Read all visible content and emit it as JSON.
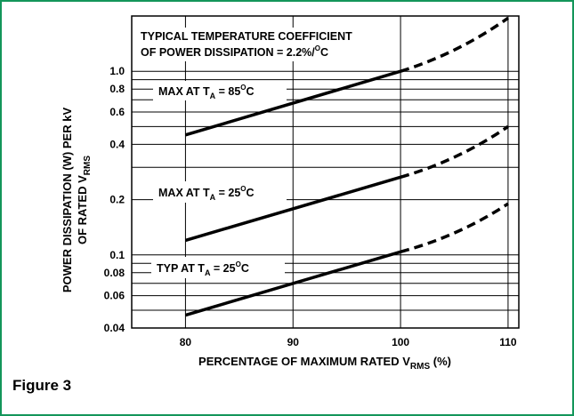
{
  "figure": {
    "label": "Figure 3"
  },
  "colors": {
    "frame": "#13965a",
    "ink": "#000000",
    "background": "#ffffff"
  },
  "chart_data": {
    "type": "line",
    "title": "",
    "annotation": {
      "line1": "TYPICAL TEMPERATURE COEFFICIENT",
      "line2_prefix": "OF POWER DISSIPATION = 2.2%/",
      "line2_sup": "O",
      "line2_suffix": "C"
    },
    "xlabel": {
      "prefix": "PERCENTAGE OF MAXIMUM RATED V",
      "sub": "RMS",
      "suffix": " (%)"
    },
    "ylabel": {
      "line1": "POWER DISSIPATION (W) PER kV",
      "line2_prefix": "OF RATED V",
      "line2_sub": "RMS"
    },
    "x_ticks": [
      "80",
      "90",
      "100",
      "110"
    ],
    "y_ticks": [
      "0.04",
      "0.06",
      "0.08",
      "0.1",
      "0.2",
      "0.4",
      "0.6",
      "0.8",
      "1.0"
    ],
    "xlim": [
      75,
      111
    ],
    "ylim": [
      0.04,
      2
    ],
    "y_scale": "log",
    "grid": true,
    "series": [
      {
        "name": {
          "prefix": "MAX AT T",
          "sub": "A",
          "mid": " = 85",
          "sup": "O",
          "suffix": "C"
        },
        "solid": {
          "x": [
            80,
            100
          ],
          "y": [
            0.45,
            1.0
          ]
        },
        "dashed": {
          "x": [
            100,
            110
          ],
          "y": [
            1.0,
            1.95
          ]
        }
      },
      {
        "name": {
          "prefix": "MAX AT T",
          "sub": "A",
          "mid": " = 25",
          "sup": "O",
          "suffix": "C"
        },
        "solid": {
          "x": [
            80,
            100
          ],
          "y": [
            0.12,
            0.265
          ]
        },
        "dashed": {
          "x": [
            100,
            110
          ],
          "y": [
            0.265,
            0.5
          ]
        }
      },
      {
        "name": {
          "prefix": "TYP AT T",
          "sub": "A",
          "mid": " = 25",
          "sup": "O",
          "suffix": "C"
        },
        "solid": {
          "x": [
            80,
            100
          ],
          "y": [
            0.047,
            0.104
          ]
        },
        "dashed": {
          "x": [
            100,
            110
          ],
          "y": [
            0.104,
            0.19
          ]
        }
      }
    ]
  }
}
